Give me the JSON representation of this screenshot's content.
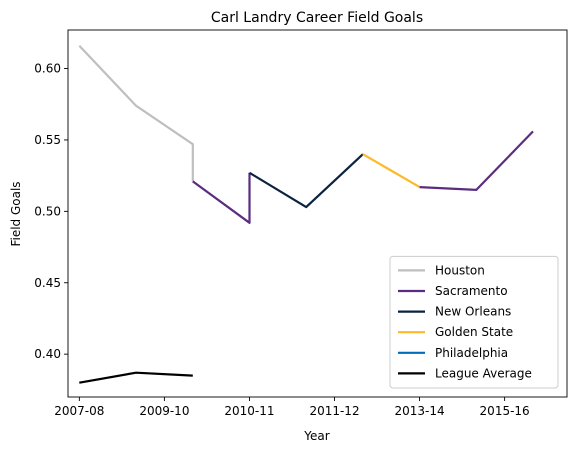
{
  "chart_data": {
    "type": "line",
    "title": "Carl Landry Career Field Goals",
    "xlabel": "Year",
    "ylabel": "Field Goals",
    "x_ticks": [
      "2007-08",
      "2009-10",
      "2010-11",
      "2011-12",
      "2013-14",
      "2015-16"
    ],
    "y_ticks": [
      "0.40",
      "0.45",
      "0.50",
      "0.55",
      "0.60"
    ],
    "xlim": [
      -0.2,
      8.6
    ],
    "ylim": [
      0.37,
      0.627
    ],
    "grid": false,
    "legend_position": "lower right",
    "series": [
      {
        "name": "Houston",
        "color": "#bfbfbf",
        "points": [
          [
            0,
            0.616
          ],
          [
            1,
            0.574
          ],
          [
            2,
            0.547
          ],
          [
            2,
            0.521
          ]
        ]
      },
      {
        "name": "Sacramento",
        "color": "#5a2d81",
        "points": [
          [
            2,
            0.521
          ],
          [
            3,
            0.492
          ],
          [
            3,
            0.527
          ]
        ]
      },
      {
        "name": "New Orleans",
        "color": "#0c2340",
        "points": [
          [
            3,
            0.527
          ],
          [
            4,
            0.503
          ],
          [
            5,
            0.54
          ]
        ]
      },
      {
        "name": "Golden State",
        "color": "#fdb927",
        "points": [
          [
            5,
            0.54
          ],
          [
            6,
            0.517
          ]
        ]
      },
      {
        "name": "Sacramento",
        "color": "#5a2d81",
        "points": [
          [
            6,
            0.517
          ],
          [
            7,
            0.515
          ],
          [
            8,
            0.556
          ]
        ],
        "in_legend": false
      },
      {
        "name": "Philadelphia",
        "color": "#006bb6",
        "points": []
      },
      {
        "name": "League Average",
        "color": "#000000",
        "points": [
          [
            0,
            0.38
          ],
          [
            1,
            0.387
          ],
          [
            2,
            0.385
          ]
        ]
      }
    ]
  }
}
